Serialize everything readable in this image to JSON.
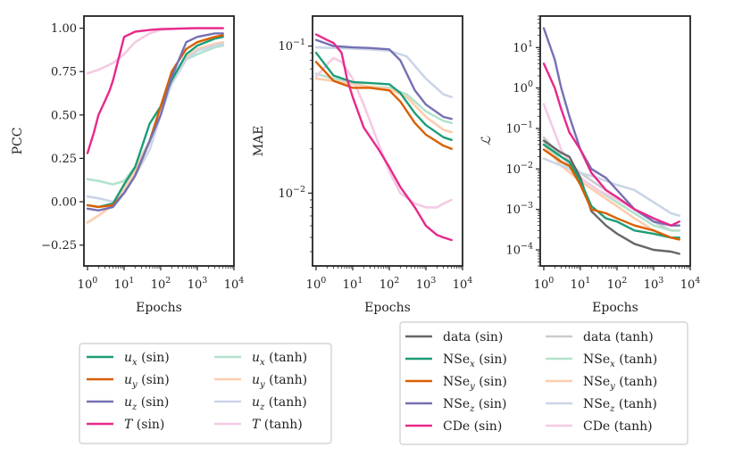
{
  "chart_data": [
    {
      "type": "line",
      "id": "pcc",
      "xscale": "log",
      "yscale": "linear",
      "xlim": [
        0.8,
        10000
      ],
      "ylim": [
        -0.37,
        1.07
      ],
      "xlabel": "Epochs",
      "ylabel": "PCC",
      "xticks": [
        1,
        10,
        100,
        1000,
        10000
      ],
      "xtick_labels": [
        "10^0",
        "10^1",
        "10^2",
        "10^3",
        "10^4"
      ],
      "yticks": [
        -0.25,
        0,
        0.25,
        0.5,
        0.75,
        1.0
      ],
      "ytick_labels": [
        "−0.25",
        "0.00",
        "0.25",
        "0.50",
        "0.75",
        "1.00"
      ],
      "series": [
        {
          "name": "u_x (tanh)",
          "color": "#b3e2cd",
          "x": [
            1,
            2,
            5,
            10,
            20,
            50,
            100,
            200,
            500,
            1000,
            3000,
            5000
          ],
          "y": [
            0.13,
            0.12,
            0.1,
            0.12,
            0.2,
            0.35,
            0.55,
            0.72,
            0.82,
            0.85,
            0.89,
            0.9
          ]
        },
        {
          "name": "u_y (tanh)",
          "color": "#fdcdac",
          "x": [
            1,
            2,
            5,
            10,
            20,
            50,
            100,
            200,
            500,
            1000,
            3000,
            5000
          ],
          "y": [
            -0.12,
            -0.08,
            -0.02,
            0.08,
            0.18,
            0.35,
            0.55,
            0.72,
            0.83,
            0.88,
            0.91,
            0.92
          ]
        },
        {
          "name": "u_z (tanh)",
          "color": "#cbd5e8",
          "x": [
            1,
            2,
            5,
            10,
            20,
            50,
            100,
            200,
            500,
            1000,
            3000,
            5000
          ],
          "y": [
            0.03,
            0.02,
            0.0,
            0.05,
            0.15,
            0.3,
            0.5,
            0.68,
            0.82,
            0.87,
            0.9,
            0.91
          ]
        },
        {
          "name": "T (tanh)",
          "color": "#f4cae4",
          "x": [
            1,
            2,
            5,
            10,
            20,
            50,
            100,
            200,
            500,
            1000,
            3000,
            5000
          ],
          "y": [
            0.74,
            0.76,
            0.8,
            0.85,
            0.92,
            0.97,
            0.99,
            0.995,
            1.0,
            1.0,
            1.0,
            1.0
          ]
        },
        {
          "name": "u_x (sin)",
          "color": "#1b9e77",
          "x": [
            1,
            2,
            5,
            10,
            20,
            50,
            100,
            200,
            500,
            1000,
            3000,
            5000
          ],
          "y": [
            -0.02,
            -0.03,
            -0.01,
            0.1,
            0.2,
            0.45,
            0.55,
            0.7,
            0.85,
            0.9,
            0.94,
            0.95
          ]
        },
        {
          "name": "u_y (sin)",
          "color": "#d95f02",
          "x": [
            1,
            2,
            5,
            10,
            20,
            50,
            100,
            200,
            500,
            1000,
            3000,
            5000
          ],
          "y": [
            -0.02,
            -0.03,
            -0.02,
            0.05,
            0.15,
            0.35,
            0.55,
            0.75,
            0.88,
            0.92,
            0.95,
            0.96
          ]
        },
        {
          "name": "u_z (sin)",
          "color": "#7570b3",
          "x": [
            1,
            2,
            5,
            10,
            20,
            50,
            100,
            200,
            500,
            1000,
            3000,
            5000
          ],
          "y": [
            -0.04,
            -0.05,
            -0.03,
            0.05,
            0.15,
            0.35,
            0.5,
            0.72,
            0.92,
            0.95,
            0.97,
            0.97
          ]
        },
        {
          "name": "T (sin)",
          "color": "#e7298a",
          "x": [
            1,
            1.5,
            2,
            3,
            4,
            5,
            7,
            10,
            20,
            50,
            100,
            1000,
            5000
          ],
          "y": [
            0.28,
            0.4,
            0.5,
            0.58,
            0.64,
            0.7,
            0.82,
            0.95,
            0.98,
            0.99,
            0.995,
            1.0,
            1.0
          ]
        }
      ]
    },
    {
      "type": "line",
      "id": "mae",
      "xscale": "log",
      "yscale": "log",
      "xlim": [
        0.8,
        10000
      ],
      "ylim": [
        0.0032,
        0.16
      ],
      "xlabel": "Epochs",
      "ylabel": "MAE",
      "xticks": [
        1,
        10,
        100,
        1000,
        10000
      ],
      "xtick_labels": [
        "10^0",
        "10^1",
        "10^2",
        "10^3",
        "10^4"
      ],
      "yticks": [
        0.01,
        0.1
      ],
      "ytick_labels": [
        "10^−2",
        "10^−1"
      ],
      "series": [
        {
          "name": "u_x (tanh)",
          "color": "#b3e2cd",
          "x": [
            1,
            3,
            10,
            30,
            100,
            300,
            1000,
            3000,
            5000
          ],
          "y": [
            0.065,
            0.06,
            0.056,
            0.053,
            0.052,
            0.047,
            0.036,
            0.031,
            0.03
          ]
        },
        {
          "name": "u_y (tanh)",
          "color": "#fdcdac",
          "x": [
            1,
            3,
            10,
            30,
            100,
            300,
            1000,
            3000,
            5000
          ],
          "y": [
            0.06,
            0.058,
            0.055,
            0.053,
            0.051,
            0.045,
            0.033,
            0.027,
            0.026
          ]
        },
        {
          "name": "u_z (tanh)",
          "color": "#cbd5e8",
          "x": [
            1,
            3,
            10,
            30,
            100,
            300,
            1000,
            3000,
            5000
          ],
          "y": [
            0.098,
            0.097,
            0.096,
            0.095,
            0.093,
            0.085,
            0.06,
            0.047,
            0.045
          ]
        },
        {
          "name": "T (tanh)",
          "color": "#f4cae4",
          "x": [
            1,
            2,
            3,
            5,
            10,
            20,
            50,
            100,
            200,
            500,
            1000,
            2000,
            3000,
            5000
          ],
          "y": [
            0.062,
            0.075,
            0.083,
            0.078,
            0.06,
            0.04,
            0.022,
            0.014,
            0.01,
            0.0085,
            0.008,
            0.008,
            0.0085,
            0.009
          ]
        },
        {
          "name": "u_x (sin)",
          "color": "#1b9e77",
          "x": [
            1,
            3,
            10,
            30,
            100,
            200,
            500,
            1000,
            3000,
            5000
          ],
          "y": [
            0.09,
            0.063,
            0.057,
            0.056,
            0.055,
            0.048,
            0.035,
            0.029,
            0.024,
            0.023
          ]
        },
        {
          "name": "u_y (sin)",
          "color": "#d95f02",
          "x": [
            1,
            3,
            10,
            30,
            100,
            200,
            500,
            1000,
            3000,
            5000
          ],
          "y": [
            0.078,
            0.058,
            0.052,
            0.052,
            0.05,
            0.042,
            0.03,
            0.025,
            0.021,
            0.02
          ]
        },
        {
          "name": "u_z (sin)",
          "color": "#7570b3",
          "x": [
            1,
            3,
            10,
            30,
            100,
            200,
            500,
            1000,
            3000,
            5000
          ],
          "y": [
            0.11,
            0.1,
            0.098,
            0.097,
            0.095,
            0.08,
            0.05,
            0.04,
            0.033,
            0.032
          ]
        },
        {
          "name": "T (sin)",
          "color": "#e7298a",
          "x": [
            1,
            2,
            3,
            5,
            7,
            10,
            20,
            50,
            100,
            200,
            500,
            1000,
            2000,
            3000,
            5000
          ],
          "y": [
            0.12,
            0.11,
            0.105,
            0.09,
            0.06,
            0.045,
            0.028,
            0.02,
            0.015,
            0.011,
            0.008,
            0.006,
            0.0052,
            0.005,
            0.0048
          ]
        }
      ]
    },
    {
      "type": "line",
      "id": "loss",
      "xscale": "log",
      "yscale": "log",
      "xlim": [
        0.8,
        10000
      ],
      "ylim": [
        4e-05,
        60
      ],
      "xlabel": "Epochs",
      "ylabel": "ℒ",
      "xticks": [
        1,
        10,
        100,
        1000,
        10000
      ],
      "xtick_labels": [
        "10^0",
        "10^1",
        "10^2",
        "10^3",
        "10^4"
      ],
      "yticks": [
        0.0001,
        0.001,
        0.01,
        0.1,
        1,
        10
      ],
      "ytick_labels": [
        "10^−4",
        "10^−3",
        "10^−2",
        "10^−1",
        "10^0",
        "10^1"
      ],
      "series": [
        {
          "name": "data (tanh)",
          "color": "#cccccc",
          "x": [
            1,
            3,
            10,
            30,
            100,
            300,
            1000,
            3000,
            5000
          ],
          "y": [
            0.06,
            0.02,
            0.008,
            0.004,
            0.002,
            0.001,
            0.0005,
            0.0003,
            0.0003
          ]
        },
        {
          "name": "NSe_x (tanh)",
          "color": "#b3e2cd",
          "x": [
            1,
            3,
            10,
            30,
            100,
            300,
            1000,
            3000,
            5000
          ],
          "y": [
            0.05,
            0.015,
            0.006,
            0.003,
            0.0015,
            0.0008,
            0.0004,
            0.0003,
            0.0003
          ]
        },
        {
          "name": "NSe_y (tanh)",
          "color": "#fdcdac",
          "x": [
            1,
            3,
            10,
            30,
            100,
            300,
            1000,
            3000,
            5000
          ],
          "y": [
            0.04,
            0.012,
            0.005,
            0.0025,
            0.0012,
            0.0006,
            0.0003,
            0.0002,
            0.0002
          ]
        },
        {
          "name": "NSe_z (tanh)",
          "color": "#cbd5e8",
          "x": [
            1,
            3,
            10,
            30,
            100,
            300,
            1000,
            3000,
            5000
          ],
          "y": [
            0.018,
            0.012,
            0.008,
            0.006,
            0.004,
            0.003,
            0.0015,
            0.0008,
            0.0007
          ]
        },
        {
          "name": "CDe (tanh)",
          "color": "#f4cae4",
          "x": [
            1,
            3,
            10,
            30,
            100,
            300,
            1000,
            3000,
            5000
          ],
          "y": [
            0.4,
            0.03,
            0.006,
            0.003,
            0.0018,
            0.001,
            0.0006,
            0.0004,
            0.0004
          ]
        },
        {
          "name": "data (sin)",
          "color": "#666666",
          "x": [
            1,
            3,
            5,
            10,
            20,
            50,
            100,
            300,
            1000,
            3000,
            5000
          ],
          "y": [
            0.05,
            0.025,
            0.02,
            0.006,
            0.0009,
            0.0004,
            0.00025,
            0.00014,
            0.0001,
            9e-05,
            8e-05
          ]
        },
        {
          "name": "NSe_x (sin)",
          "color": "#1b9e77",
          "x": [
            1,
            3,
            5,
            10,
            20,
            50,
            100,
            300,
            1000,
            3000,
            5000
          ],
          "y": [
            0.04,
            0.02,
            0.015,
            0.005,
            0.0012,
            0.0006,
            0.0005,
            0.0003,
            0.00025,
            0.0002,
            0.0002
          ]
        },
        {
          "name": "NSe_y (sin)",
          "color": "#d95f02",
          "x": [
            1,
            3,
            5,
            10,
            20,
            50,
            100,
            300,
            1000,
            3000,
            5000
          ],
          "y": [
            0.03,
            0.015,
            0.012,
            0.004,
            0.001,
            0.0008,
            0.0006,
            0.0004,
            0.0003,
            0.0002,
            0.00018
          ]
        },
        {
          "name": "NSe_z (sin)",
          "color": "#7570b3",
          "x": [
            1,
            2,
            3,
            5,
            10,
            20,
            50,
            100,
            300,
            1000,
            3000,
            5000
          ],
          "y": [
            30,
            5,
            1,
            0.2,
            0.03,
            0.01,
            0.006,
            0.003,
            0.001,
            0.0005,
            0.0004,
            0.0004
          ]
        },
        {
          "name": "CDe (sin)",
          "color": "#e7298a",
          "x": [
            1,
            2,
            3,
            5,
            10,
            20,
            50,
            100,
            300,
            1000,
            3000,
            5000
          ],
          "y": [
            4,
            1,
            0.3,
            0.08,
            0.03,
            0.008,
            0.003,
            0.002,
            0.001,
            0.0006,
            0.0004,
            0.0005
          ]
        }
      ]
    }
  ],
  "legend_left": [
    [
      {
        "base": "u",
        "sub": "x",
        "suffix": " (sin)",
        "color": "#1b9e77"
      },
      {
        "base": "u",
        "sub": "y",
        "suffix": " (sin)",
        "color": "#d95f02"
      },
      {
        "base": "u",
        "sub": "z",
        "suffix": " (sin)",
        "color": "#7570b3"
      },
      {
        "base": "T",
        "sub": "",
        "suffix": " (sin)",
        "color": "#e7298a"
      }
    ],
    [
      {
        "base": "u",
        "sub": "x",
        "suffix": " (tanh)",
        "color": "#b3e2cd"
      },
      {
        "base": "u",
        "sub": "y",
        "suffix": " (tanh)",
        "color": "#fdcdac"
      },
      {
        "base": "u",
        "sub": "z",
        "suffix": " (tanh)",
        "color": "#cbd5e8"
      },
      {
        "base": "T",
        "sub": "",
        "suffix": " (tanh)",
        "color": "#f4cae4"
      }
    ]
  ],
  "legend_right": [
    [
      {
        "base": "data",
        "sub": "",
        "suffix": " (sin)",
        "color": "#666666"
      },
      {
        "base": "NSe",
        "sub": "x",
        "suffix": " (sin)",
        "color": "#1b9e77"
      },
      {
        "base": "NSe",
        "sub": "y",
        "suffix": " (sin)",
        "color": "#d95f02"
      },
      {
        "base": "NSe",
        "sub": "z",
        "suffix": " (sin)",
        "color": "#7570b3"
      },
      {
        "base": "CDe",
        "sub": "",
        "suffix": " (sin)",
        "color": "#e7298a"
      }
    ],
    [
      {
        "base": "data",
        "sub": "",
        "suffix": " (tanh)",
        "color": "#cccccc"
      },
      {
        "base": "NSe",
        "sub": "x",
        "suffix": " (tanh)",
        "color": "#b3e2cd"
      },
      {
        "base": "NSe",
        "sub": "y",
        "suffix": " (tanh)",
        "color": "#fdcdac"
      },
      {
        "base": "NSe",
        "sub": "z",
        "suffix": " (tanh)",
        "color": "#cbd5e8"
      },
      {
        "base": "CDe",
        "sub": "",
        "suffix": " (tanh)",
        "color": "#f4cae4"
      }
    ]
  ]
}
